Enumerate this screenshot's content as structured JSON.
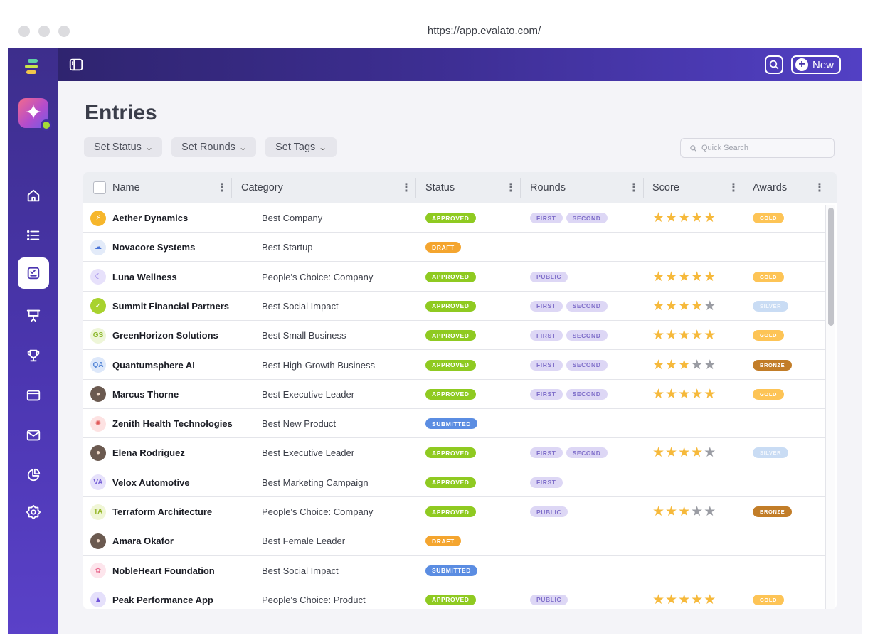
{
  "browser": {
    "url": "https://app.evalato.com/"
  },
  "topbar": {
    "new_label": "New"
  },
  "page": {
    "title": "Entries",
    "filters": [
      "Set Status",
      "Set Rounds",
      "Set Tags"
    ],
    "search_placeholder": "Quick Search"
  },
  "table": {
    "columns": [
      "Name",
      "Category",
      "Status",
      "Rounds",
      "Score",
      "Awards"
    ],
    "rows": [
      {
        "name": "Aether Dynamics",
        "category": "Best Company",
        "status": "APPROVED",
        "rounds": [
          "FIRST",
          "SECOND"
        ],
        "score": 5,
        "award": "GOLD",
        "avatar": "logo-yellow"
      },
      {
        "name": "Novacore Systems",
        "category": "Best Startup",
        "status": "DRAFT",
        "rounds": [],
        "score": 0,
        "award": "",
        "avatar": "cloud-blue"
      },
      {
        "name": "Luna Wellness",
        "category": "People's Choice: Company",
        "status": "APPROVED",
        "rounds": [
          "PUBLIC"
        ],
        "score": 5,
        "award": "GOLD",
        "avatar": "moon-purple"
      },
      {
        "name": "Summit Financial Partners",
        "category": "Best Social Impact",
        "status": "APPROVED",
        "rounds": [
          "FIRST",
          "SECOND"
        ],
        "score": 4,
        "award": "SILVER",
        "avatar": "check-green"
      },
      {
        "name": "GreenHorizon Solutions",
        "category": "Best Small Business",
        "status": "APPROVED",
        "rounds": [
          "FIRST",
          "SECOND"
        ],
        "score": 5,
        "award": "GOLD",
        "avatar": "GS"
      },
      {
        "name": "Quantumsphere AI",
        "category": "Best High-Growth Business",
        "status": "APPROVED",
        "rounds": [
          "FIRST",
          "SECOND"
        ],
        "score": 3,
        "award": "BRONZE",
        "avatar": "QA"
      },
      {
        "name": "Marcus Thorne",
        "category": "Best Executive Leader",
        "status": "APPROVED",
        "rounds": [
          "FIRST",
          "SECOND"
        ],
        "score": 5,
        "award": "GOLD",
        "avatar": "photo"
      },
      {
        "name": "Zenith Health Technologies",
        "category": "Best New Product",
        "status": "SUBMITTED",
        "rounds": [],
        "score": 0,
        "award": "",
        "avatar": "flower-red"
      },
      {
        "name": "Elena Rodriguez",
        "category": "Best Executive Leader",
        "status": "APPROVED",
        "rounds": [
          "FIRST",
          "SECOND"
        ],
        "score": 4,
        "award": "SILVER",
        "avatar": "photo"
      },
      {
        "name": "Velox Automotive",
        "category": "Best Marketing Campaign",
        "status": "APPROVED",
        "rounds": [
          "FIRST"
        ],
        "score": 0,
        "award": "",
        "avatar": "VA"
      },
      {
        "name": "Terraform Architecture",
        "category": "People's Choice: Company",
        "status": "APPROVED",
        "rounds": [
          "PUBLIC"
        ],
        "score": 3,
        "award": "BRONZE",
        "avatar": "TA"
      },
      {
        "name": "Amara Okafor",
        "category": "Best Female Leader",
        "status": "DRAFT",
        "rounds": [],
        "score": 0,
        "award": "",
        "avatar": "photo"
      },
      {
        "name": "NobleHeart Foundation",
        "category": "Best Social Impact",
        "status": "SUBMITTED",
        "rounds": [],
        "score": 0,
        "award": "",
        "avatar": "flower-pink"
      },
      {
        "name": "Peak Performance App",
        "category": "People's Choice: Product",
        "status": "APPROVED",
        "rounds": [
          "PUBLIC"
        ],
        "score": 5,
        "award": "GOLD",
        "avatar": "people-purple"
      }
    ]
  },
  "colors": {
    "sidebar": "#4b36b0",
    "approved": "#8fca21",
    "draft": "#f4a52f",
    "submitted": "#5b8de2",
    "gold": "#fdc456",
    "silver": "#c9dcf4",
    "bronze": "#c27d28"
  },
  "icons": {
    "sidebar": [
      "home-icon",
      "list-icon",
      "entries-icon",
      "presentation-icon",
      "trophy-icon",
      "browser-window-icon",
      "mail-icon",
      "pie-chart-icon",
      "settings-icon"
    ]
  }
}
